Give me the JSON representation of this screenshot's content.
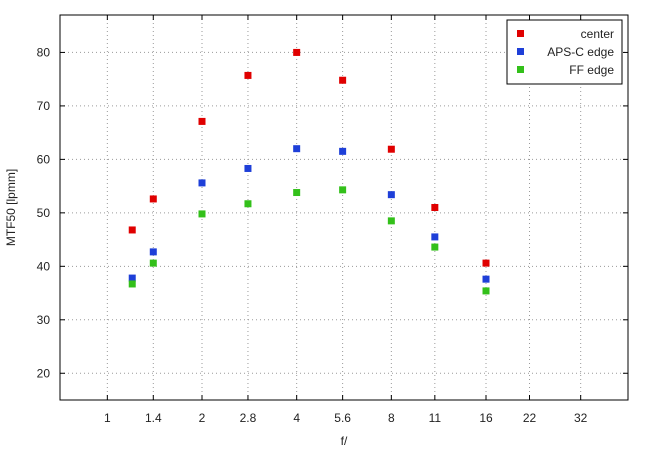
{
  "chart_data": {
    "type": "scatter",
    "xlabel": "f/",
    "ylabel": "MTF50 [lpmm]",
    "x_ticks": [
      "1",
      "1.4",
      "2",
      "2.8",
      "4",
      "5.6",
      "8",
      "11",
      "16",
      "22",
      "32"
    ],
    "x_scale": "log2",
    "y_ticks": [
      20,
      30,
      40,
      50,
      60,
      70,
      80
    ],
    "ylim": [
      15,
      87
    ],
    "grid": true,
    "legend_position": "top-right",
    "series": [
      {
        "name": "center",
        "color": "#e00000",
        "points": [
          {
            "x": "1.2",
            "y": 46.8
          },
          {
            "x": "1.4",
            "y": 52.6
          },
          {
            "x": "2",
            "y": 67.1
          },
          {
            "x": "2.8",
            "y": 75.7
          },
          {
            "x": "4",
            "y": 80.0
          },
          {
            "x": "5.6",
            "y": 74.8
          },
          {
            "x": "8",
            "y": 61.9
          },
          {
            "x": "11",
            "y": 51.0
          },
          {
            "x": "16",
            "y": 40.6
          }
        ]
      },
      {
        "name": "APS-C edge",
        "color": "#1e3fd8",
        "points": [
          {
            "x": "1.2",
            "y": 37.8
          },
          {
            "x": "1.4",
            "y": 42.7
          },
          {
            "x": "2",
            "y": 55.6
          },
          {
            "x": "2.8",
            "y": 58.3
          },
          {
            "x": "4",
            "y": 62.0
          },
          {
            "x": "5.6",
            "y": 61.5
          },
          {
            "x": "8",
            "y": 53.4
          },
          {
            "x": "11",
            "y": 45.5
          },
          {
            "x": "16",
            "y": 37.6
          }
        ]
      },
      {
        "name": "FF edge",
        "color": "#33c01a",
        "points": [
          {
            "x": "1.2",
            "y": 36.7
          },
          {
            "x": "1.4",
            "y": 40.6
          },
          {
            "x": "2",
            "y": 49.8
          },
          {
            "x": "2.8",
            "y": 51.7
          },
          {
            "x": "4",
            "y": 53.8
          },
          {
            "x": "5.6",
            "y": 54.3
          },
          {
            "x": "8",
            "y": 48.5
          },
          {
            "x": "11",
            "y": 43.6
          },
          {
            "x": "16",
            "y": 35.4
          }
        ]
      }
    ]
  }
}
